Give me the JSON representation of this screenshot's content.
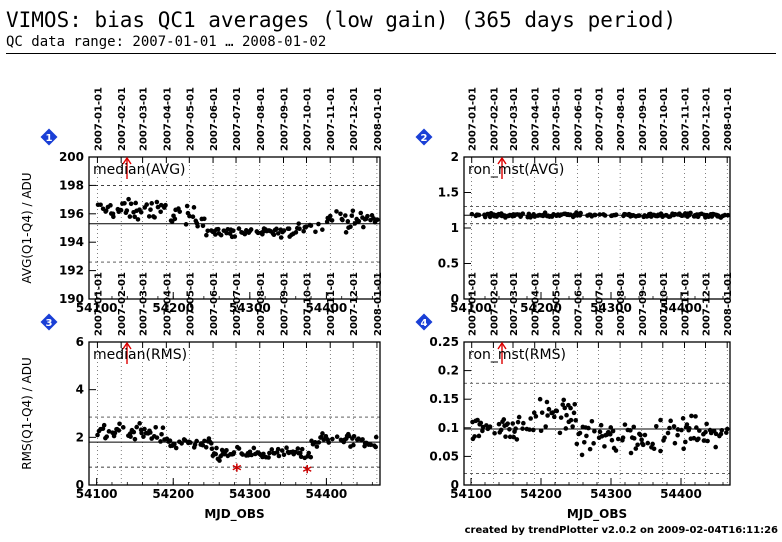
{
  "header": {
    "title": "VIMOS: bias QC1 averages (low gain) (365 days period)",
    "subtitle": "QC data range: 2007-01-01 … 2008-01-02"
  },
  "footer": {
    "text": "created by trendPlotter v2.0.2 on 2009-02-04T16:11:26"
  },
  "colors": {
    "point": "#000000",
    "outlier": "#cc0000",
    "badge": "#1a3fd6",
    "arrow": "#dd0000",
    "grid": "#000000"
  },
  "date_ticks": [
    "2007-01-01",
    "2007-02-01",
    "2007-03-01",
    "2007-04-01",
    "2007-05-01",
    "2007-06-01",
    "2007-07-01",
    "2007-08-01",
    "2007-09-01",
    "2007-10-01",
    "2007-11-01",
    "2007-12-01",
    "2008-01-01"
  ],
  "date_tick_mjd": [
    54101,
    54132,
    54160,
    54191,
    54221,
    54252,
    54282,
    54313,
    54344,
    54374,
    54405,
    54435,
    54466
  ],
  "chart_data": [
    {
      "badge": "1",
      "type": "scatter",
      "label": "median(AVG)",
      "ylabel": "AVG(Q1-Q4) / ADU",
      "xlabel": "",
      "xlim": [
        54090,
        54470
      ],
      "ylim": [
        190,
        200
      ],
      "xticks": [
        54100,
        54200,
        54300,
        54400
      ],
      "yticks": [
        "190",
        "192",
        "194",
        "196",
        "198",
        "200"
      ],
      "ytick_values": [
        190,
        192,
        194,
        196,
        198,
        200
      ],
      "ref_solid": [
        195.3
      ],
      "ref_dashed": [
        192.6,
        198.0
      ],
      "segments": [
        {
          "x": [
            54101,
            54190
          ],
          "center": 196.3,
          "spread": 0.55
        },
        {
          "x": [
            54190,
            54240
          ],
          "center": 195.9,
          "spread": 0.6
        },
        {
          "x": [
            54240,
            54360
          ],
          "center": 194.7,
          "spread": 0.3
        },
        {
          "x": [
            54360,
            54400
          ],
          "center": 195.1,
          "spread": 0.35
        },
        {
          "x": [
            54400,
            54466
          ],
          "center": 195.6,
          "spread": 0.6
        }
      ],
      "outliers": []
    },
    {
      "badge": "2",
      "type": "scatter",
      "label": "ron_mst(AVG)",
      "ylabel": "",
      "xlabel": "",
      "xlim": [
        54090,
        54470
      ],
      "ylim": [
        0,
        2
      ],
      "xticks": [
        54100,
        54200,
        54300,
        54400
      ],
      "yticks": [
        "0",
        "0.5",
        "1",
        "1.5",
        "2"
      ],
      "ytick_values": [
        0,
        0.5,
        1,
        1.5,
        2
      ],
      "ref_solid": [
        1.18
      ],
      "ref_dashed": [
        1.06,
        1.3
      ],
      "segments": [
        {
          "x": [
            54101,
            54466
          ],
          "center": 1.18,
          "spread": 0.025
        }
      ],
      "outliers": []
    },
    {
      "badge": "3",
      "type": "scatter",
      "label": "median(RMS)",
      "ylabel": "RMS(Q1-Q4) / ADU",
      "xlabel": "MJD_OBS",
      "xlim": [
        54090,
        54470
      ],
      "ylim": [
        0,
        6
      ],
      "xticks": [
        54100,
        54200,
        54300,
        54400
      ],
      "yticks": [
        "0",
        "2",
        "4",
        "6"
      ],
      "ytick_values": [
        0,
        2,
        4,
        6
      ],
      "ref_solid": [
        1.8
      ],
      "ref_dashed": [
        0.75,
        2.85
      ],
      "segments": [
        {
          "x": [
            54101,
            54190
          ],
          "center": 2.2,
          "spread": 0.3
        },
        {
          "x": [
            54190,
            54250
          ],
          "center": 1.7,
          "spread": 0.2
        },
        {
          "x": [
            54250,
            54380
          ],
          "center": 1.3,
          "spread": 0.25
        },
        {
          "x": [
            54380,
            54466
          ],
          "center": 1.9,
          "spread": 0.3
        }
      ],
      "outliers": [
        {
          "x": 54283,
          "y": 0.6
        },
        {
          "x": 54375,
          "y": 0.55
        }
      ]
    },
    {
      "badge": "4",
      "type": "scatter",
      "label": "ron_mst(RMS)",
      "ylabel": "",
      "xlabel": "MJD_OBS",
      "xlim": [
        54090,
        54470
      ],
      "ylim": [
        0,
        0.25
      ],
      "xticks": [
        54100,
        54200,
        54300,
        54400
      ],
      "yticks": [
        "0",
        "0.05",
        "0.1",
        "0.15",
        "0.2",
        "0.25"
      ],
      "ytick_values": [
        0,
        0.05,
        0.1,
        0.15,
        0.2,
        0.25
      ],
      "ref_solid": [
        0.098
      ],
      "ref_dashed": [
        0.02,
        0.178
      ],
      "segments": [
        {
          "x": [
            54101,
            54190
          ],
          "center": 0.1,
          "spread": 0.02
        },
        {
          "x": [
            54190,
            54250
          ],
          "center": 0.125,
          "spread": 0.025
        },
        {
          "x": [
            54250,
            54370
          ],
          "center": 0.085,
          "spread": 0.028
        },
        {
          "x": [
            54370,
            54466
          ],
          "center": 0.092,
          "spread": 0.022
        }
      ],
      "outliers": []
    }
  ]
}
